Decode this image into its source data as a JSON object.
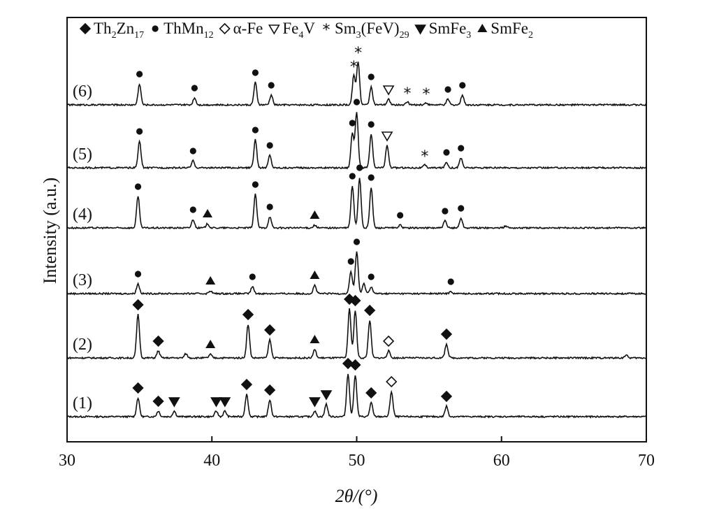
{
  "chart_data": {
    "type": "line",
    "xlabel": "2θ/(°)",
    "ylabel": "Intensity (a.u.)",
    "xlim": [
      30,
      70
    ],
    "xticks": [
      30,
      40,
      50,
      60,
      70
    ],
    "grid": false,
    "legend_position": "top",
    "legend": [
      {
        "symbol": "diamond-filled",
        "base": "Th",
        "sub1": "2",
        "mid": "Zn",
        "sub2": "17"
      },
      {
        "symbol": "circle-filled",
        "base": "ThMn",
        "sub1": "12",
        "mid": "",
        "sub2": ""
      },
      {
        "symbol": "diamond-open",
        "base": "α-Fe",
        "sub1": "",
        "mid": "",
        "sub2": ""
      },
      {
        "symbol": "triangle-down-open",
        "base": "Fe",
        "sub1": "4",
        "mid": "V",
        "sub2": ""
      },
      {
        "symbol": "star",
        "base": "Sm",
        "sub1": "3",
        "mid": "(FeV)",
        "sub2": "29"
      },
      {
        "symbol": "triangle-down-filled",
        "base": "SmFe",
        "sub1": "3",
        "mid": "",
        "sub2": ""
      },
      {
        "symbol": "triangle-up-filled",
        "base": "SmFe",
        "sub1": "2",
        "mid": "",
        "sub2": ""
      }
    ],
    "series": [
      {
        "name": "(1)",
        "peaks": [
          {
            "x": 34.9,
            "h": 27,
            "m": "diamond-filled"
          },
          {
            "x": 36.3,
            "h": 8,
            "m": "diamond-filled"
          },
          {
            "x": 37.4,
            "h": 8,
            "m": "triangle-down-filled"
          },
          {
            "x": 40.3,
            "h": 8,
            "m": "triangle-down-filled"
          },
          {
            "x": 40.9,
            "h": 8,
            "m": "triangle-down-filled"
          },
          {
            "x": 42.4,
            "h": 32,
            "m": "diamond-filled"
          },
          {
            "x": 44.0,
            "h": 24,
            "m": "diamond-filled"
          },
          {
            "x": 47.1,
            "h": 8,
            "m": "triangle-down-filled"
          },
          {
            "x": 47.9,
            "h": 18,
            "m": "triangle-down-filled"
          },
          {
            "x": 49.4,
            "h": 62,
            "m": "diamond-filled"
          },
          {
            "x": 49.9,
            "h": 60,
            "m": "diamond-filled"
          },
          {
            "x": 51.0,
            "h": 20,
            "m": "diamond-filled"
          },
          {
            "x": 52.4,
            "h": 36,
            "m": "diamond-open"
          },
          {
            "x": 56.2,
            "h": 15,
            "m": "diamond-filled"
          }
        ]
      },
      {
        "name": "(2)",
        "peaks": [
          {
            "x": 34.9,
            "h": 62,
            "m": "diamond-filled"
          },
          {
            "x": 36.3,
            "h": 10,
            "m": "diamond-filled"
          },
          {
            "x": 38.2,
            "h": 6,
            "m": ""
          },
          {
            "x": 39.9,
            "h": 5,
            "m": "triangle-up-filled"
          },
          {
            "x": 42.5,
            "h": 48,
            "m": "diamond-filled"
          },
          {
            "x": 44.0,
            "h": 26,
            "m": "diamond-filled"
          },
          {
            "x": 47.1,
            "h": 12,
            "m": "triangle-up-filled"
          },
          {
            "x": 49.5,
            "h": 70,
            "m": "diamond-filled"
          },
          {
            "x": 49.9,
            "h": 68,
            "m": "diamond-filled"
          },
          {
            "x": 50.9,
            "h": 54,
            "m": "diamond-filled"
          },
          {
            "x": 52.2,
            "h": 10,
            "m": "diamond-open"
          },
          {
            "x": 56.2,
            "h": 20,
            "m": "diamond-filled"
          },
          {
            "x": 68.6,
            "h": 4,
            "m": ""
          }
        ]
      },
      {
        "name": "(3)",
        "peaks": [
          {
            "x": 34.9,
            "h": 14,
            "m": "circle-filled"
          },
          {
            "x": 39.9,
            "h": 4,
            "m": "triangle-up-filled"
          },
          {
            "x": 42.8,
            "h": 10,
            "m": "circle-filled"
          },
          {
            "x": 47.1,
            "h": 12,
            "m": "triangle-up-filled"
          },
          {
            "x": 49.6,
            "h": 32,
            "m": "circle-filled"
          },
          {
            "x": 50.0,
            "h": 60,
            "m": "circle-filled"
          },
          {
            "x": 50.5,
            "h": 14,
            "m": ""
          },
          {
            "x": 51.0,
            "h": 10,
            "m": "circle-filled"
          },
          {
            "x": 56.5,
            "h": 3,
            "m": "circle-filled"
          }
        ]
      },
      {
        "name": "(4)",
        "peaks": [
          {
            "x": 34.9,
            "h": 45,
            "m": "circle-filled"
          },
          {
            "x": 38.7,
            "h": 12,
            "m": "circle-filled"
          },
          {
            "x": 39.7,
            "h": 6,
            "m": "triangle-up-filled"
          },
          {
            "x": 43.0,
            "h": 48,
            "m": "circle-filled"
          },
          {
            "x": 44.0,
            "h": 16,
            "m": "circle-filled"
          },
          {
            "x": 47.1,
            "h": 4,
            "m": "triangle-up-filled"
          },
          {
            "x": 49.7,
            "h": 60,
            "m": "circle-filled"
          },
          {
            "x": 50.2,
            "h": 72,
            "m": "circle-filled"
          },
          {
            "x": 51.0,
            "h": 58,
            "m": "circle-filled"
          },
          {
            "x": 53.0,
            "h": 4,
            "m": "circle-filled"
          },
          {
            "x": 56.1,
            "h": 10,
            "m": "circle-filled"
          },
          {
            "x": 57.2,
            "h": 14,
            "m": "circle-filled"
          },
          {
            "x": 60.3,
            "h": 3,
            "m": ""
          }
        ]
      },
      {
        "name": "(5)",
        "peaks": [
          {
            "x": 35.0,
            "h": 38,
            "m": "circle-filled"
          },
          {
            "x": 38.7,
            "h": 10,
            "m": "circle-filled"
          },
          {
            "x": 43.0,
            "h": 40,
            "m": "circle-filled"
          },
          {
            "x": 44.0,
            "h": 18,
            "m": "circle-filled"
          },
          {
            "x": 49.7,
            "h": 50,
            "m": "circle-filled"
          },
          {
            "x": 50.0,
            "h": 80,
            "m": "circle-filled"
          },
          {
            "x": 51.0,
            "h": 48,
            "m": "circle-filled"
          },
          {
            "x": 52.1,
            "h": 32,
            "m": "triangle-down-open"
          },
          {
            "x": 54.7,
            "h": 4,
            "m": "star"
          },
          {
            "x": 56.2,
            "h": 8,
            "m": "circle-filled"
          },
          {
            "x": 57.2,
            "h": 14,
            "m": "circle-filled"
          }
        ]
      },
      {
        "name": "(6)",
        "peaks": [
          {
            "x": 35.0,
            "h": 30,
            "m": "circle-filled"
          },
          {
            "x": 38.8,
            "h": 10,
            "m": "circle-filled"
          },
          {
            "x": 43.0,
            "h": 32,
            "m": "circle-filled"
          },
          {
            "x": 44.1,
            "h": 14,
            "m": "circle-filled"
          },
          {
            "x": 49.8,
            "h": 42,
            "m": "star"
          },
          {
            "x": 50.1,
            "h": 62,
            "m": "star"
          },
          {
            "x": 51.0,
            "h": 26,
            "m": "circle-filled"
          },
          {
            "x": 52.2,
            "h": 8,
            "m": "triangle-down-open"
          },
          {
            "x": 53.5,
            "h": 4,
            "m": "star"
          },
          {
            "x": 54.8,
            "h": 3,
            "m": "star"
          },
          {
            "x": 56.3,
            "h": 8,
            "m": "circle-filled"
          },
          {
            "x": 57.3,
            "h": 14,
            "m": "circle-filled"
          }
        ]
      }
    ]
  }
}
